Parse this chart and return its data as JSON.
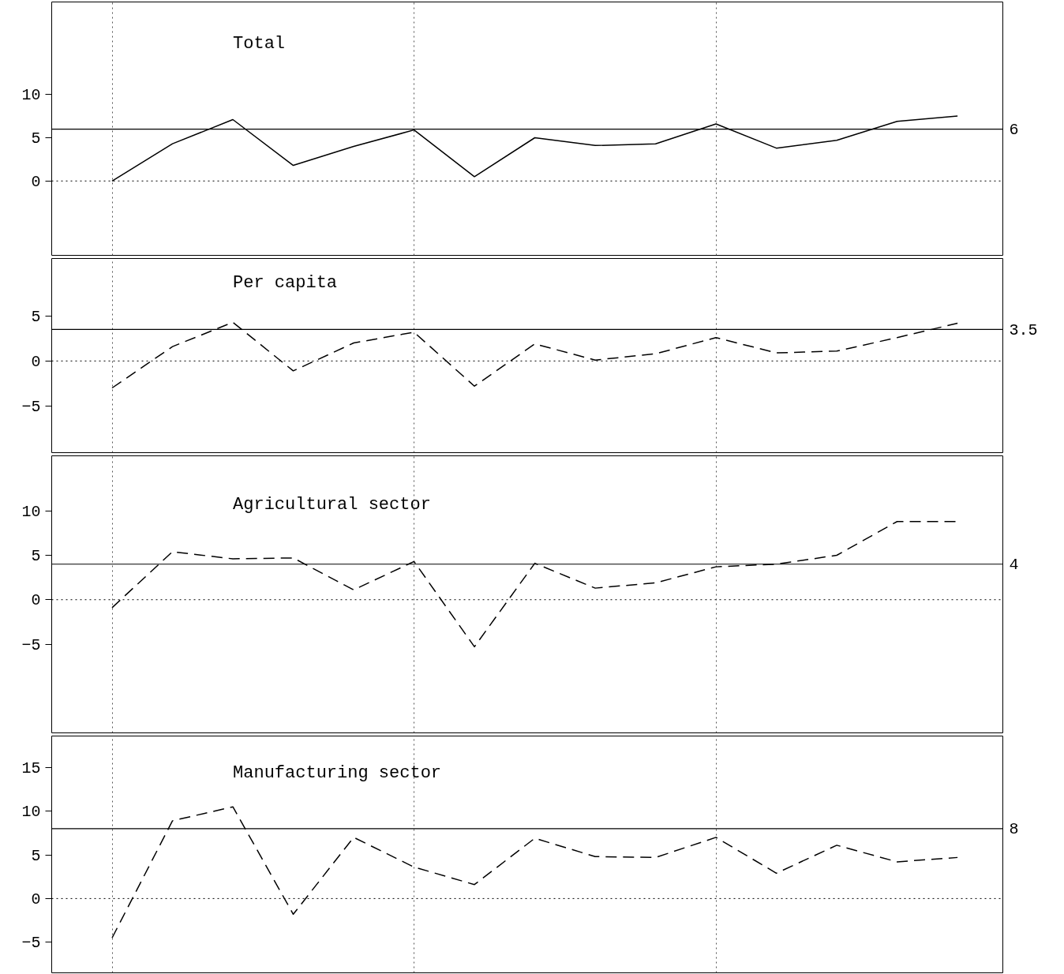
{
  "chart_data": [
    {
      "type": "line",
      "title": "Total",
      "categories": [
        null,
        null,
        null,
        null,
        null,
        null,
        null,
        null,
        null,
        null,
        null,
        null,
        null,
        null,
        null
      ],
      "ylim": [
        -8.6,
        20.7
      ],
      "yticks": [
        0,
        5,
        10
      ],
      "tick_labels": "y",
      "grid": "x",
      "line_style": "solid",
      "series": [
        {
          "color": "#000000",
          "values": [
            0,
            4.3,
            7.1,
            1.8,
            4.0,
            5.9,
            0.5,
            5.0,
            4.1,
            4.3,
            6.6,
            3.8,
            4.7,
            6.9,
            7.5
          ]
        }
      ],
      "ref_lines": [
        {
          "axis": "y",
          "value": 6,
          "label": "6"
        },
        {
          "axis": "y",
          "value": 0,
          "label": null,
          "line_style": "dotted"
        }
      ]
    },
    {
      "type": "line",
      "title": "Per capita",
      "categories": [
        null,
        null,
        null,
        null,
        null,
        null,
        null,
        null,
        null,
        null,
        null,
        null,
        null,
        null,
        null
      ],
      "ylim": [
        -10.2,
        11.4
      ],
      "yticks": [
        -5,
        0,
        5
      ],
      "tick_labels": "y",
      "grid": "x",
      "line_style": "dashed",
      "series": [
        {
          "color": "#000000",
          "values": [
            -3.0,
            1.6,
            4.3,
            -1.1,
            2.0,
            3.2,
            -2.8,
            1.9,
            0.1,
            0.8,
            2.6,
            0.9,
            1.1,
            2.6,
            4.2
          ]
        }
      ],
      "ref_lines": [
        {
          "axis": "y",
          "value": 3.5,
          "label": "3.5"
        },
        {
          "axis": "y",
          "value": 0,
          "label": null,
          "line_style": "dotted"
        }
      ]
    },
    {
      "type": "line",
      "title": "Agricultural sector",
      "categories": [
        null,
        null,
        null,
        null,
        null,
        null,
        null,
        null,
        null,
        null,
        null,
        null,
        null,
        null,
        null
      ],
      "ylim": [
        -15,
        16.2
      ],
      "yticks": [
        -5,
        0,
        5,
        10
      ],
      "tick_labels": "y",
      "grid": "x",
      "line_style": "dashed",
      "series": [
        {
          "color": "#000000",
          "values": [
            -0.9,
            5.4,
            4.6,
            4.7,
            1.1,
            4.3,
            -5.3,
            4.1,
            1.3,
            1.9,
            3.7,
            4.0,
            5.0,
            8.8,
            8.8
          ]
        }
      ],
      "ref_lines": [
        {
          "axis": "y",
          "value": 4,
          "label": "4"
        },
        {
          "axis": "y",
          "value": 0,
          "label": null,
          "line_style": "dotted"
        }
      ]
    },
    {
      "type": "line",
      "title": "Manufacturing sector",
      "categories": [
        null,
        null,
        null,
        null,
        null,
        null,
        null,
        null,
        null,
        null,
        null,
        null,
        null,
        null,
        null
      ],
      "ylim": [
        -8.5,
        18.6
      ],
      "yticks": [
        -5,
        0,
        5,
        10,
        15
      ],
      "tick_labels": "y",
      "grid": "x",
      "line_style": "dashed",
      "series": [
        {
          "color": "#000000",
          "values": [
            -4.5,
            8.9,
            10.5,
            -1.8,
            7.0,
            3.6,
            1.6,
            6.9,
            4.8,
            4.7,
            7.0,
            2.9,
            6.1,
            4.2,
            4.7
          ]
        }
      ],
      "ref_lines": [
        {
          "axis": "y",
          "value": 8,
          "label": "8"
        },
        {
          "axis": "y",
          "value": 0,
          "label": null,
          "line_style": "dotted"
        }
      ]
    }
  ]
}
